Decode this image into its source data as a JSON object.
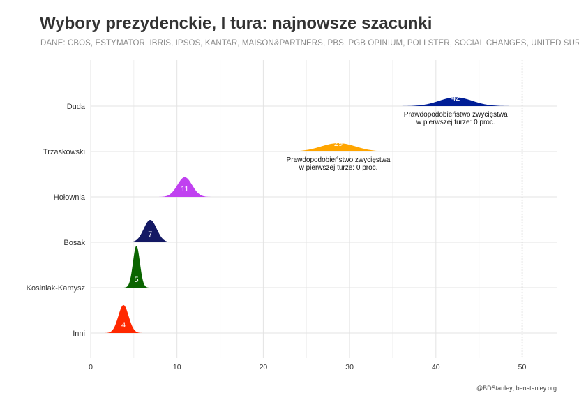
{
  "title": "Wybory prezydenckie, I tura: najnowsze szacunki",
  "subtitle": "DANE: CBOS, ESTYMATOR, IBRIS, IPSOS, KANTAR, MAISON&PARTNERS, PBS, PGB OPINIUM, POLLSTER, SOCIAL CHANGES, UNITED SURVEY",
  "caption": "@BDStanley; benstanley.org",
  "chart_data": {
    "type": "ridgeline-density",
    "title": "Wybory prezydenckie, I tura: najnowsze szacunki",
    "xlabel": "",
    "ylabel": "",
    "xlim": [
      0,
      54
    ],
    "x_ticks": [
      0,
      10,
      20,
      30,
      40,
      50
    ],
    "reference_line": 50,
    "grid": true,
    "series": [
      {
        "name": "Duda",
        "mean": 42.3,
        "sd": 1.9,
        "value_label": "42",
        "color": "#001e96",
        "annotation": [
          "Prawdopodobieństwo zwycięstwa",
          "w pierwszej turze: 0 proc."
        ]
      },
      {
        "name": "Trzaskowski",
        "mean": 28.7,
        "sd": 2.0,
        "value_label": "29",
        "color": "#ffa500",
        "annotation": [
          "Prawdopodobieństwo zwycięstwa",
          "w pierwszej turze: 0 proc."
        ]
      },
      {
        "name": "Hołownia",
        "mean": 10.9,
        "sd": 0.85,
        "value_label": "11",
        "color": "#c041f0"
      },
      {
        "name": "Bosak",
        "mean": 6.9,
        "sd": 0.75,
        "value_label": "7",
        "color": "#141964"
      },
      {
        "name": "Kosiniak-Kamysz",
        "mean": 5.3,
        "sd": 0.4,
        "value_label": "5",
        "color": "#0a6400"
      },
      {
        "name": "Inni",
        "mean": 3.8,
        "sd": 0.6,
        "value_label": "4",
        "color": "#ff2800"
      }
    ]
  }
}
